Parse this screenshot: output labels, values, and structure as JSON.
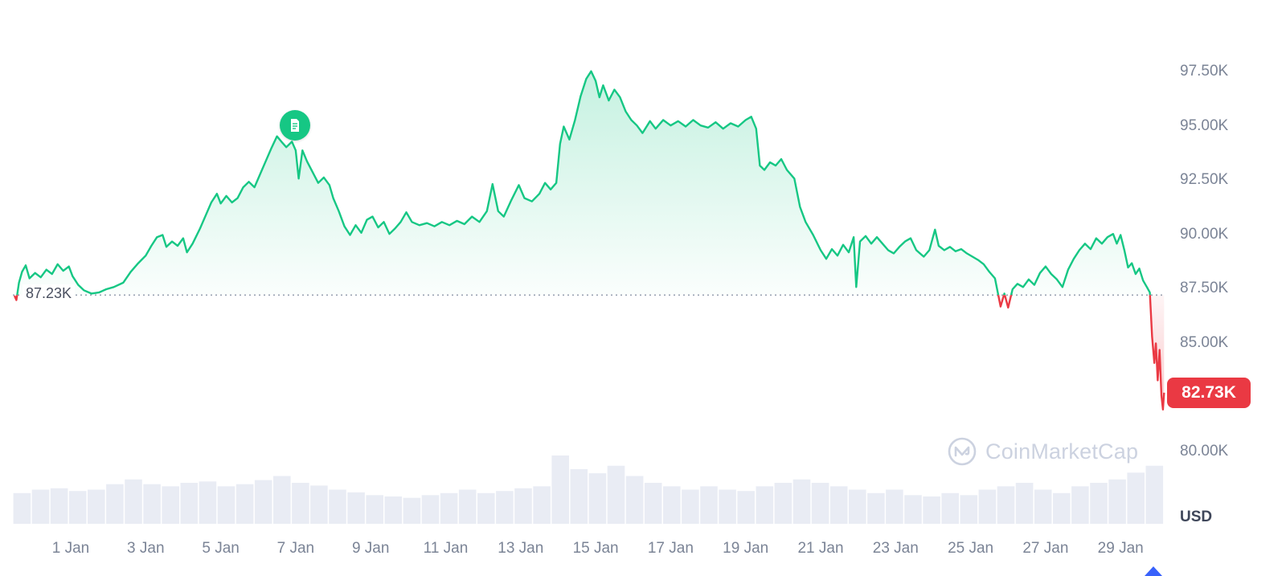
{
  "colors": {
    "green": "#16c784",
    "red": "#ea3943",
    "axis_text": "#7b8496",
    "baseline_text": "#4a5060",
    "dotted": "#9aa3b2",
    "volume": "#e9ecf4",
    "badge_bg": "#ea3943",
    "badge_text": "#ffffff",
    "watermark": "#ccd2e0",
    "annotation_bg": "#16c784",
    "blue": "#3861fb"
  },
  "watermark": {
    "text": "CoinMarketCap"
  },
  "chart_data": {
    "type": "line",
    "title": "",
    "x_unit": "day of January (0 = 31 Dec)",
    "y_unit_suffix": "K",
    "ylim": [
      80,
      98.6
    ],
    "legend": "none",
    "grid": "off",
    "baseline": {
      "value": 87.23,
      "label": "87.23K"
    },
    "current_price": {
      "value": 82.73,
      "label": "82.73K"
    },
    "annotation": {
      "type": "news-event-marker",
      "day": 6.97,
      "price": 95.05
    },
    "y_axis": {
      "unit": "USD",
      "ticks": [
        {
          "value": 97.5,
          "label": "97.50K"
        },
        {
          "value": 95.0,
          "label": "95.00K"
        },
        {
          "value": 92.5,
          "label": "92.50K"
        },
        {
          "value": 90.0,
          "label": "90.00K"
        },
        {
          "value": 87.5,
          "label": "87.50K"
        },
        {
          "value": 85.0,
          "label": "85.00K"
        },
        {
          "value": 80.0,
          "label": "80.00K"
        }
      ]
    },
    "x_axis": {
      "ticks": [
        {
          "day": 1,
          "label": "1 Jan"
        },
        {
          "day": 3,
          "label": "3 Jan"
        },
        {
          "day": 5,
          "label": "5 Jan"
        },
        {
          "day": 7,
          "label": "7 Jan"
        },
        {
          "day": 9,
          "label": "9 Jan"
        },
        {
          "day": 11,
          "label": "11 Jan"
        },
        {
          "day": 13,
          "label": "13 Jan"
        },
        {
          "day": 15,
          "label": "15 Jan"
        },
        {
          "day": 17,
          "label": "17 Jan"
        },
        {
          "day": 19,
          "label": "19 Jan"
        },
        {
          "day": 21,
          "label": "21 Jan"
        },
        {
          "day": 23,
          "label": "23 Jan"
        },
        {
          "day": 25,
          "label": "25 Jan"
        },
        {
          "day": 27,
          "label": "27 Jan"
        },
        {
          "day": 29,
          "label": "29 Jan"
        }
      ]
    },
    "series": [
      [
        -0.5,
        87.2
      ],
      [
        -0.45,
        87.0
      ],
      [
        -0.38,
        87.8
      ],
      [
        -0.3,
        88.3
      ],
      [
        -0.2,
        88.6
      ],
      [
        -0.1,
        88.0
      ],
      [
        0.05,
        88.25
      ],
      [
        0.2,
        88.05
      ],
      [
        0.35,
        88.4
      ],
      [
        0.5,
        88.2
      ],
      [
        0.65,
        88.65
      ],
      [
        0.8,
        88.35
      ],
      [
        0.95,
        88.55
      ],
      [
        1.05,
        88.1
      ],
      [
        1.2,
        87.7
      ],
      [
        1.35,
        87.45
      ],
      [
        1.55,
        87.3
      ],
      [
        1.75,
        87.35
      ],
      [
        1.95,
        87.5
      ],
      [
        2.15,
        87.6
      ],
      [
        2.4,
        87.8
      ],
      [
        2.6,
        88.3
      ],
      [
        2.8,
        88.7
      ],
      [
        3.0,
        89.05
      ],
      [
        3.15,
        89.5
      ],
      [
        3.3,
        89.9
      ],
      [
        3.45,
        90.0
      ],
      [
        3.55,
        89.45
      ],
      [
        3.7,
        89.7
      ],
      [
        3.85,
        89.5
      ],
      [
        4.0,
        89.85
      ],
      [
        4.1,
        89.2
      ],
      [
        4.25,
        89.6
      ],
      [
        4.45,
        90.3
      ],
      [
        4.6,
        90.9
      ],
      [
        4.75,
        91.5
      ],
      [
        4.9,
        91.9
      ],
      [
        5.0,
        91.45
      ],
      [
        5.15,
        91.8
      ],
      [
        5.3,
        91.5
      ],
      [
        5.45,
        91.7
      ],
      [
        5.6,
        92.2
      ],
      [
        5.75,
        92.45
      ],
      [
        5.9,
        92.2
      ],
      [
        6.05,
        92.8
      ],
      [
        6.2,
        93.4
      ],
      [
        6.35,
        94.0
      ],
      [
        6.5,
        94.55
      ],
      [
        6.62,
        94.3
      ],
      [
        6.75,
        94.05
      ],
      [
        6.9,
        94.3
      ],
      [
        7.0,
        93.9
      ],
      [
        7.08,
        92.6
      ],
      [
        7.18,
        93.9
      ],
      [
        7.3,
        93.4
      ],
      [
        7.45,
        92.9
      ],
      [
        7.6,
        92.4
      ],
      [
        7.75,
        92.65
      ],
      [
        7.9,
        92.3
      ],
      [
        8.0,
        91.7
      ],
      [
        8.15,
        91.1
      ],
      [
        8.3,
        90.4
      ],
      [
        8.45,
        90.0
      ],
      [
        8.6,
        90.45
      ],
      [
        8.75,
        90.1
      ],
      [
        8.9,
        90.7
      ],
      [
        9.05,
        90.85
      ],
      [
        9.2,
        90.35
      ],
      [
        9.35,
        90.6
      ],
      [
        9.5,
        90.05
      ],
      [
        9.65,
        90.3
      ],
      [
        9.8,
        90.6
      ],
      [
        9.95,
        91.05
      ],
      [
        10.1,
        90.6
      ],
      [
        10.3,
        90.45
      ],
      [
        10.5,
        90.55
      ],
      [
        10.7,
        90.4
      ],
      [
        10.9,
        90.6
      ],
      [
        11.1,
        90.45
      ],
      [
        11.3,
        90.65
      ],
      [
        11.5,
        90.5
      ],
      [
        11.7,
        90.85
      ],
      [
        11.9,
        90.6
      ],
      [
        12.1,
        91.1
      ],
      [
        12.25,
        92.35
      ],
      [
        12.4,
        91.1
      ],
      [
        12.55,
        90.85
      ],
      [
        12.75,
        91.6
      ],
      [
        12.95,
        92.3
      ],
      [
        13.1,
        91.7
      ],
      [
        13.3,
        91.55
      ],
      [
        13.5,
        91.9
      ],
      [
        13.65,
        92.4
      ],
      [
        13.8,
        92.1
      ],
      [
        13.95,
        92.4
      ],
      [
        14.05,
        94.2
      ],
      [
        14.15,
        95.0
      ],
      [
        14.3,
        94.4
      ],
      [
        14.45,
        95.3
      ],
      [
        14.6,
        96.4
      ],
      [
        14.75,
        97.2
      ],
      [
        14.88,
        97.55
      ],
      [
        15.0,
        97.1
      ],
      [
        15.1,
        96.35
      ],
      [
        15.2,
        96.9
      ],
      [
        15.35,
        96.2
      ],
      [
        15.5,
        96.7
      ],
      [
        15.65,
        96.35
      ],
      [
        15.8,
        95.7
      ],
      [
        15.95,
        95.3
      ],
      [
        16.1,
        95.05
      ],
      [
        16.25,
        94.7
      ],
      [
        16.45,
        95.25
      ],
      [
        16.6,
        94.9
      ],
      [
        16.8,
        95.3
      ],
      [
        17.0,
        95.05
      ],
      [
        17.2,
        95.25
      ],
      [
        17.4,
        95.0
      ],
      [
        17.6,
        95.3
      ],
      [
        17.8,
        95.05
      ],
      [
        18.0,
        94.95
      ],
      [
        18.2,
        95.2
      ],
      [
        18.4,
        94.9
      ],
      [
        18.6,
        95.15
      ],
      [
        18.8,
        95.0
      ],
      [
        19.0,
        95.3
      ],
      [
        19.15,
        95.45
      ],
      [
        19.28,
        94.9
      ],
      [
        19.38,
        93.2
      ],
      [
        19.5,
        93.0
      ],
      [
        19.65,
        93.35
      ],
      [
        19.8,
        93.2
      ],
      [
        19.95,
        93.5
      ],
      [
        20.1,
        93.0
      ],
      [
        20.3,
        92.6
      ],
      [
        20.45,
        91.3
      ],
      [
        20.6,
        90.6
      ],
      [
        20.8,
        90.0
      ],
      [
        21.0,
        89.3
      ],
      [
        21.15,
        88.9
      ],
      [
        21.3,
        89.35
      ],
      [
        21.45,
        89.05
      ],
      [
        21.6,
        89.55
      ],
      [
        21.75,
        89.2
      ],
      [
        21.88,
        89.9
      ],
      [
        21.95,
        87.6
      ],
      [
        22.05,
        89.7
      ],
      [
        22.2,
        89.95
      ],
      [
        22.35,
        89.6
      ],
      [
        22.5,
        89.9
      ],
      [
        22.65,
        89.6
      ],
      [
        22.8,
        89.3
      ],
      [
        22.95,
        89.15
      ],
      [
        23.1,
        89.45
      ],
      [
        23.25,
        89.7
      ],
      [
        23.4,
        89.85
      ],
      [
        23.55,
        89.3
      ],
      [
        23.75,
        89.0
      ],
      [
        23.9,
        89.3
      ],
      [
        24.05,
        90.25
      ],
      [
        24.15,
        89.5
      ],
      [
        24.3,
        89.3
      ],
      [
        24.45,
        89.45
      ],
      [
        24.6,
        89.25
      ],
      [
        24.75,
        89.35
      ],
      [
        24.9,
        89.15
      ],
      [
        25.05,
        89.0
      ],
      [
        25.2,
        88.85
      ],
      [
        25.35,
        88.65
      ],
      [
        25.5,
        88.3
      ],
      [
        25.65,
        88.0
      ],
      [
        25.8,
        86.7
      ],
      [
        25.9,
        87.3
      ],
      [
        26.0,
        86.65
      ],
      [
        26.12,
        87.5
      ],
      [
        26.25,
        87.75
      ],
      [
        26.4,
        87.6
      ],
      [
        26.55,
        87.95
      ],
      [
        26.7,
        87.7
      ],
      [
        26.85,
        88.25
      ],
      [
        27.0,
        88.55
      ],
      [
        27.15,
        88.2
      ],
      [
        27.3,
        87.95
      ],
      [
        27.45,
        87.6
      ],
      [
        27.6,
        88.4
      ],
      [
        27.75,
        88.9
      ],
      [
        27.9,
        89.3
      ],
      [
        28.05,
        89.6
      ],
      [
        28.2,
        89.35
      ],
      [
        28.35,
        89.85
      ],
      [
        28.5,
        89.6
      ],
      [
        28.65,
        89.9
      ],
      [
        28.8,
        90.05
      ],
      [
        28.9,
        89.6
      ],
      [
        29.0,
        90.0
      ],
      [
        29.1,
        89.3
      ],
      [
        29.2,
        88.5
      ],
      [
        29.3,
        88.7
      ],
      [
        29.4,
        88.2
      ],
      [
        29.5,
        88.45
      ],
      [
        29.6,
        87.9
      ],
      [
        29.7,
        87.6
      ],
      [
        29.78,
        87.35
      ],
      [
        29.84,
        85.3
      ],
      [
        29.9,
        84.1
      ],
      [
        29.94,
        85.0
      ],
      [
        29.99,
        83.3
      ],
      [
        30.04,
        84.7
      ],
      [
        30.09,
        82.6
      ],
      [
        30.13,
        81.95
      ],
      [
        30.16,
        82.73
      ]
    ],
    "volume": [
      0.45,
      0.5,
      0.52,
      0.48,
      0.5,
      0.58,
      0.65,
      0.58,
      0.55,
      0.6,
      0.62,
      0.55,
      0.58,
      0.64,
      0.7,
      0.6,
      0.56,
      0.5,
      0.46,
      0.42,
      0.4,
      0.38,
      0.42,
      0.45,
      0.5,
      0.45,
      0.48,
      0.52,
      0.55,
      1.0,
      0.8,
      0.74,
      0.85,
      0.7,
      0.6,
      0.55,
      0.5,
      0.55,
      0.5,
      0.48,
      0.55,
      0.6,
      0.65,
      0.6,
      0.55,
      0.5,
      0.45,
      0.5,
      0.42,
      0.4,
      0.45,
      0.42,
      0.5,
      0.55,
      0.6,
      0.5,
      0.45,
      0.55,
      0.6,
      0.65,
      0.75,
      0.85
    ]
  }
}
